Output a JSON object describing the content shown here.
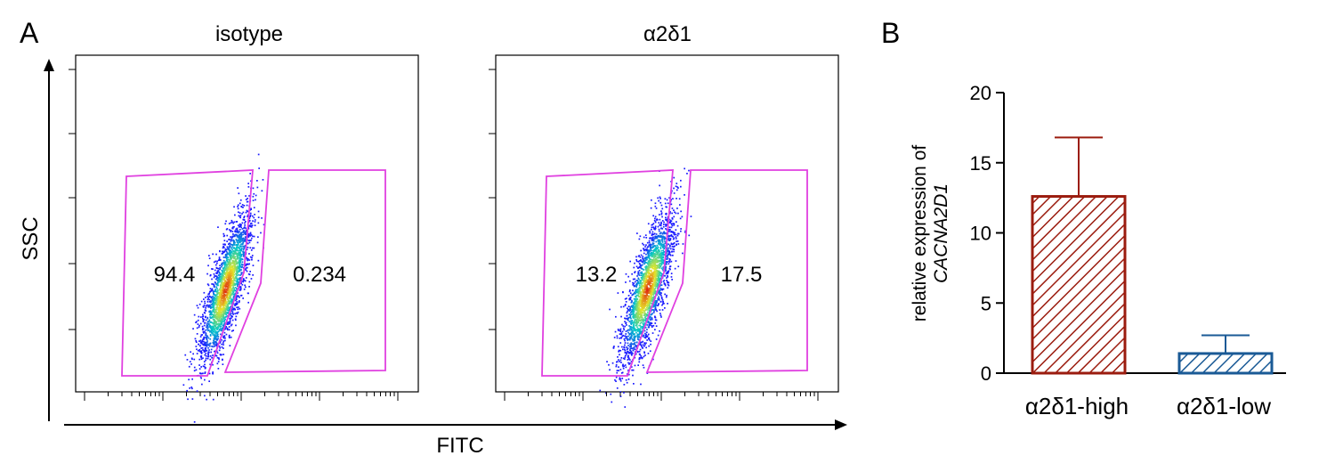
{
  "panels": {
    "a_letter": "A",
    "b_letter": "B"
  },
  "flow": {
    "xlabel": "FITC",
    "ylabel": "SSC",
    "plots": [
      {
        "title": "isotype",
        "left_gate_pct": "94.4",
        "right_gate_pct": "0.234",
        "shift": 0.0
      },
      {
        "title": "α2δ1",
        "left_gate_pct": "13.2",
        "right_gate_pct": "17.5",
        "shift": 0.3
      }
    ],
    "colors": {
      "gate": "#e040e0",
      "density_low": "#1a1aff",
      "density_mid": "#00c8c8",
      "density_high": "#e02010"
    }
  },
  "chart_data": {
    "type": "bar",
    "categories": [
      "α2δ1-high",
      "α2δ1-low"
    ],
    "values": [
      12.6,
      1.4
    ],
    "errors": [
      4.2,
      1.3
    ],
    "ylabel_line1": "relative expression of",
    "ylabel_line2": "CACNA2D1",
    "ylim": [
      0,
      20
    ],
    "yticks": [
      "0",
      "5",
      "10",
      "15",
      "20"
    ],
    "colors": [
      "#9b1c0f",
      "#1a5a96"
    ],
    "fill": "hatched"
  }
}
